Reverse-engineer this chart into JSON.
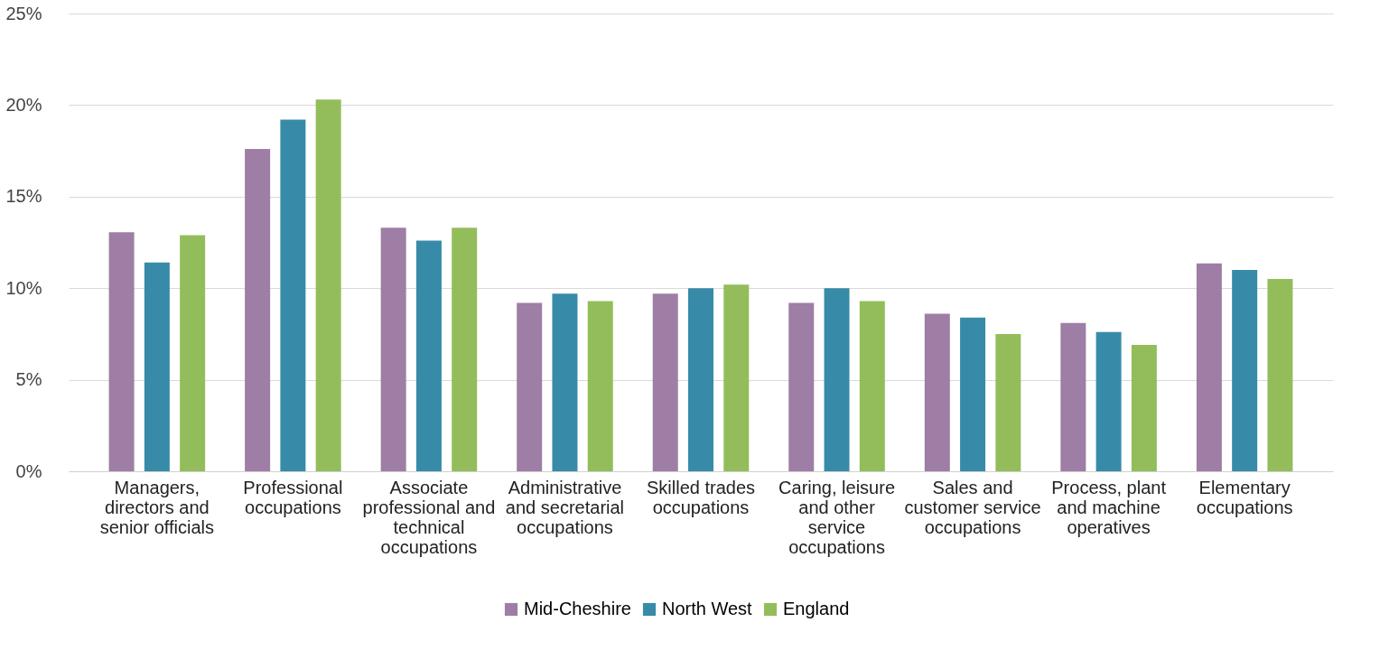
{
  "chart_data": {
    "type": "bar",
    "categories": [
      "Managers, directors and senior officials",
      "Professional occupations",
      "Associate professional and technical occupations",
      "Administrative and secretarial occupations",
      "Skilled trades occupations",
      "Caring, leisure and other service occupations",
      "Sales and customer service occupations",
      "Process, plant and machine operatives",
      "Elementary occupations"
    ],
    "series": [
      {
        "name": "Mid-Cheshire",
        "color": "#9e7ea4",
        "values": [
          13.05,
          17.6,
          13.3,
          9.2,
          9.7,
          9.2,
          8.6,
          8.1,
          11.35
        ]
      },
      {
        "name": "North West",
        "color": "#378ba8",
        "values": [
          11.4,
          19.2,
          12.6,
          9.7,
          10.0,
          10.0,
          8.4,
          7.6,
          11.0
        ]
      },
      {
        "name": "England",
        "color": "#93bd5b",
        "values": [
          12.9,
          20.3,
          13.3,
          9.3,
          10.2,
          9.3,
          7.5,
          6.9,
          10.5
        ]
      }
    ],
    "ylim": [
      0,
      25
    ],
    "yticks": [
      {
        "value": 0,
        "label": "0%"
      },
      {
        "value": 5,
        "label": "5%"
      },
      {
        "value": 10,
        "label": "10%"
      },
      {
        "value": 15,
        "label": "15%"
      },
      {
        "value": 20,
        "label": "20%"
      },
      {
        "value": 25,
        "label": "25%"
      }
    ],
    "grid": "y",
    "legend": "bottom"
  }
}
